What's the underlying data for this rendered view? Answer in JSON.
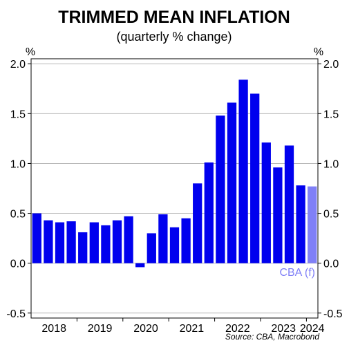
{
  "chart_data": {
    "type": "bar",
    "title": "TRIMMED MEAN INFLATION",
    "subtitle": "(quarterly % change)",
    "y_unit_left": "%",
    "y_unit_right": "%",
    "ylim": [
      -0.55,
      2.05
    ],
    "yticks": [
      -0.5,
      0.0,
      0.5,
      1.0,
      1.5,
      2.0
    ],
    "ytick_labels": [
      "-0.5",
      "0.0",
      "0.5",
      "1.0",
      "1.5",
      "2.0"
    ],
    "grid": true,
    "year_labels": [
      "2018",
      "2019",
      "2020",
      "2021",
      "2022",
      "2023",
      "2024"
    ],
    "quarters": [
      "Q1 2018",
      "Q2 2018",
      "Q3 2018",
      "Q4 2018",
      "Q1 2019",
      "Q2 2019",
      "Q3 2019",
      "Q4 2019",
      "Q1 2020",
      "Q2 2020",
      "Q3 2020",
      "Q4 2020",
      "Q1 2021",
      "Q2 2021",
      "Q3 2021",
      "Q4 2021",
      "Q1 2022",
      "Q2 2022",
      "Q3 2022",
      "Q4 2022",
      "Q1 2023",
      "Q2 2023",
      "Q3 2023",
      "Q4 2023",
      "Q1 2024"
    ],
    "series": [
      {
        "values": [
          0.5,
          0.43,
          0.41,
          0.42,
          0.31,
          0.41,
          0.38,
          0.43,
          0.47,
          -0.04,
          0.3,
          0.49,
          0.36,
          0.45,
          0.8,
          1.01,
          1.48,
          1.61,
          1.84,
          1.7,
          1.21,
          0.96,
          1.18,
          0.78,
          null
        ],
        "color": "#0000ee"
      },
      {
        "name": "CBA (f)",
        "values": [
          null,
          null,
          null,
          null,
          null,
          null,
          null,
          null,
          null,
          null,
          null,
          null,
          null,
          null,
          null,
          null,
          null,
          null,
          null,
          null,
          null,
          null,
          null,
          null,
          0.77
        ],
        "color": "#8080f7"
      }
    ],
    "annotation": "CBA (f)",
    "annotation_color": "#8080f7",
    "source": "Source: CBA, Macrobond"
  }
}
